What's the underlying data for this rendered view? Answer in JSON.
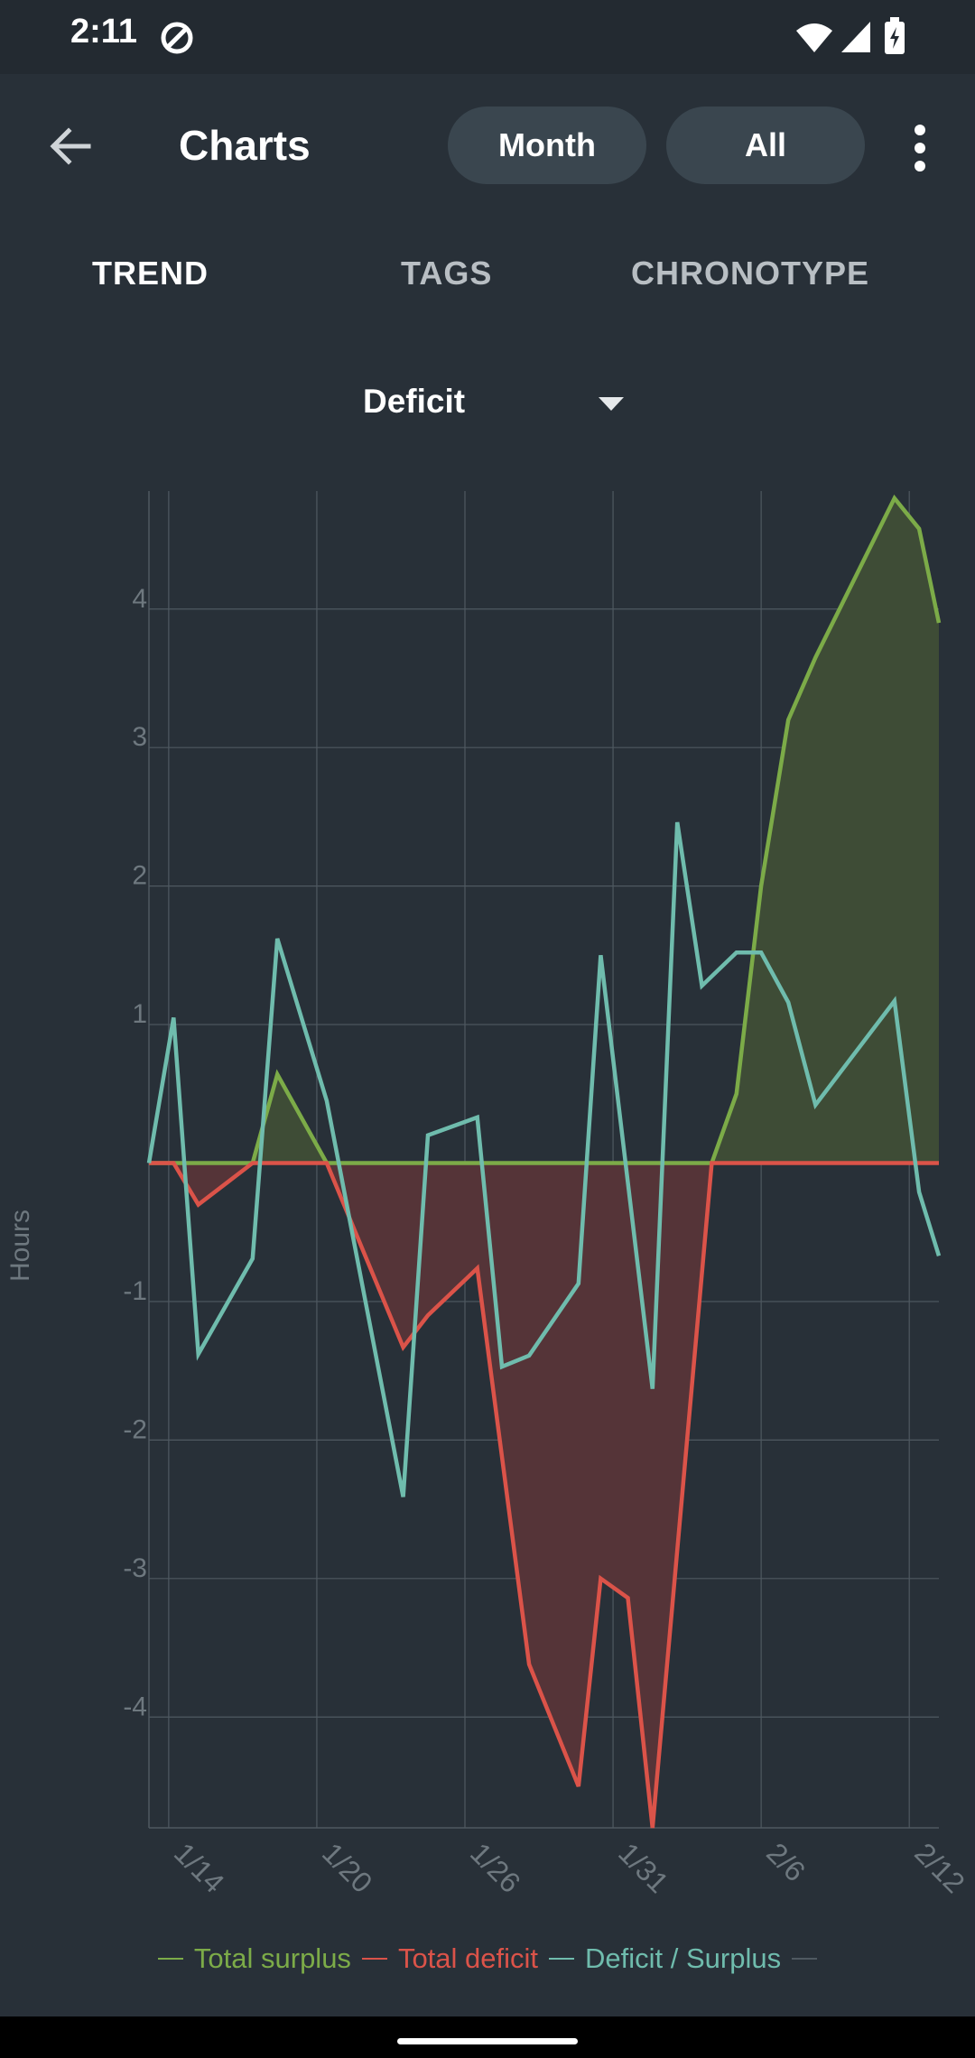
{
  "status_bar": {
    "time": "2:11"
  },
  "app_bar": {
    "title": "Charts",
    "chip_month": "Month",
    "chip_all": "All"
  },
  "tabs": [
    {
      "label": "TREND",
      "selected": true
    },
    {
      "label": "TAGS",
      "selected": false
    },
    {
      "label": "CHRONOTYPE",
      "selected": false
    }
  ],
  "dropdown": {
    "selected": "Deficit"
  },
  "colors": {
    "surplus": "#7cab48",
    "deficit": "#db5349",
    "net": "#6fbcad",
    "grid": "#4f5961",
    "axis_text": "#6e787f",
    "surplus_fill": "#3e4c36",
    "deficit_fill": "#553438"
  },
  "legend": {
    "surplus": "Total surplus",
    "deficit": "Total deficit",
    "net": "Deficit / Surplus"
  },
  "chart_data": {
    "type": "line",
    "ylabel": "Hours",
    "xlabel": "",
    "ylim": [
      -4.8,
      4.8
    ],
    "yticks": [
      4,
      3,
      2,
      1,
      -1,
      -2,
      -3,
      -4
    ],
    "x_tick_labels": [
      "1/14",
      "1/20",
      "1/26",
      "1/31",
      "2/6",
      "2/12"
    ],
    "x_tick_days": [
      13,
      19,
      25,
      31,
      37,
      43
    ],
    "xlim": [
      12.2,
      44.2
    ],
    "grid": true,
    "legend_placement": "bottom",
    "series": [
      {
        "name": "Total surplus",
        "color_key": "surplus",
        "fill": true,
        "x": [
          12.2,
          16.4,
          17.4,
          19.4,
          35.0,
          36.0,
          37.0,
          38.1,
          39.2,
          42.4,
          43.4,
          44.2
        ],
        "y": [
          0,
          0,
          0.64,
          0,
          0,
          0.5,
          2.0,
          3.2,
          3.65,
          4.8,
          4.58,
          3.9
        ]
      },
      {
        "name": "Total deficit",
        "color_key": "deficit",
        "fill": true,
        "x": [
          12.2,
          13.2,
          14.2,
          16.4,
          19.4,
          22.5,
          23.5,
          25.5,
          27.6,
          29.6,
          30.5,
          31.6,
          32.6,
          35.0,
          44.2
        ],
        "y": [
          0,
          0,
          -0.3,
          0,
          0,
          -1.33,
          -1.1,
          -0.76,
          -3.62,
          -4.5,
          -3.0,
          -3.14,
          -4.8,
          0,
          0
        ]
      },
      {
        "name": "Deficit / Surplus",
        "color_key": "net",
        "fill": false,
        "x": [
          12.2,
          13.2,
          14.2,
          16.4,
          17.4,
          19.4,
          22.5,
          23.5,
          25.5,
          26.5,
          27.6,
          29.6,
          30.5,
          32.6,
          33.6,
          34.6,
          36.0,
          37.0,
          38.1,
          39.2,
          42.4,
          43.4,
          44.2
        ],
        "y": [
          0,
          1.05,
          -1.38,
          -0.69,
          1.62,
          0.45,
          -2.41,
          0.2,
          0.33,
          -1.47,
          -1.39,
          -0.87,
          1.5,
          -1.63,
          2.46,
          1.28,
          1.52,
          1.52,
          1.16,
          0.42,
          1.17,
          -0.21,
          -0.67
        ]
      }
    ]
  }
}
